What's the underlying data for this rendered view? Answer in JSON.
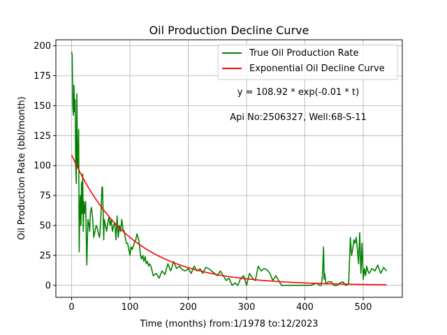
{
  "chart_data": {
    "type": "line",
    "title": "Oil Production Decline Curve",
    "xlabel": "Time (months) from:1/1978 to:12/2023",
    "ylabel": "Oil Production Rate (bbl/month)",
    "xlim": [
      -27,
      567
    ],
    "ylim": [
      -10,
      205
    ],
    "xticks": [
      0,
      100,
      200,
      300,
      400,
      500
    ],
    "yticks": [
      0,
      25,
      50,
      75,
      100,
      125,
      150,
      175,
      200
    ],
    "grid": true,
    "legend_position": "top-right",
    "annotations": [
      "y = 108.92 * exp(-0.01 * t)",
      "Api No:2506327, Well:68-S-11"
    ],
    "series": [
      {
        "name": "True Oil Production Rate",
        "color": "#008000",
        "x": [
          0,
          1,
          2,
          3,
          4,
          5,
          6,
          7,
          8,
          9,
          10,
          11,
          12,
          13,
          14,
          15,
          16,
          17,
          18,
          19,
          20,
          21,
          22,
          24,
          26,
          28,
          30,
          31,
          32,
          34,
          36,
          38,
          40,
          42,
          44,
          46,
          48,
          50,
          52,
          53,
          54,
          55,
          56,
          58,
          60,
          62,
          64,
          66,
          68,
          70,
          72,
          74,
          76,
          78,
          80,
          82,
          84,
          86,
          88,
          90,
          92,
          94,
          96,
          98,
          100,
          102,
          104,
          106,
          108,
          110,
          112,
          114,
          116,
          118,
          120,
          122,
          124,
          126,
          128,
          130,
          132,
          134,
          136,
          140,
          145,
          150,
          155,
          160,
          165,
          170,
          175,
          180,
          185,
          190,
          195,
          200,
          205,
          210,
          215,
          220,
          225,
          230,
          235,
          240,
          245,
          250,
          255,
          260,
          265,
          270,
          275,
          280,
          285,
          290,
          295,
          300,
          305,
          310,
          315,
          320,
          325,
          330,
          335,
          340,
          345,
          350,
          360,
          370,
          380,
          390,
          400,
          410,
          420,
          425,
          428,
          430,
          432,
          433,
          434,
          436,
          438,
          440,
          445,
          450,
          455,
          460,
          465,
          470,
          475,
          478,
          480,
          482,
          484,
          486,
          488,
          490,
          492,
          494,
          496,
          498,
          500,
          502,
          504,
          506,
          508,
          510,
          515,
          520,
          525,
          530,
          535,
          540
        ],
        "y": [
          195,
          192,
          150,
          142,
          167,
          145,
          155,
          100,
          85,
          160,
          100,
          98,
          130,
          28,
          60,
          75,
          50,
          86,
          60,
          93,
          45,
          70,
          60,
          70,
          17,
          55,
          50,
          45,
          60,
          65,
          56,
          40,
          45,
          50,
          48,
          43,
          40,
          55,
          82,
          82,
          62,
          38,
          55,
          50,
          45,
          52,
          57,
          50,
          55,
          45,
          50,
          52,
          38,
          58,
          40,
          50,
          45,
          55,
          47,
          45,
          40,
          35,
          35,
          30,
          25,
          32,
          30,
          33,
          36,
          38,
          43,
          40,
          35,
          25,
          22,
          25,
          20,
          24,
          18,
          20,
          16,
          18,
          16,
          8,
          10,
          6,
          12,
          9,
          18,
          12,
          20,
          14,
          16,
          13,
          12,
          14,
          10,
          16,
          12,
          14,
          10,
          15,
          14,
          12,
          10,
          8,
          12,
          8,
          4,
          6,
          0,
          2,
          0,
          6,
          8,
          0,
          10,
          6,
          4,
          16,
          12,
          14,
          13,
          10,
          4,
          8,
          0,
          0,
          0,
          0,
          0,
          0,
          2,
          0,
          0,
          8,
          32,
          5,
          10,
          1,
          2,
          3,
          3,
          0,
          0,
          2,
          3,
          0,
          1,
          40,
          25,
          30,
          38,
          35,
          40,
          30,
          18,
          44,
          10,
          35,
          5,
          14,
          8,
          16,
          12,
          10,
          14,
          12,
          17,
          10,
          15,
          12
        ]
      },
      {
        "name": "Exponential Oil Decline Curve",
        "color": "#ff0000",
        "fit": {
          "a": 108.92,
          "b": 0.01,
          "t_start": 0,
          "t_end": 540
        }
      }
    ]
  }
}
